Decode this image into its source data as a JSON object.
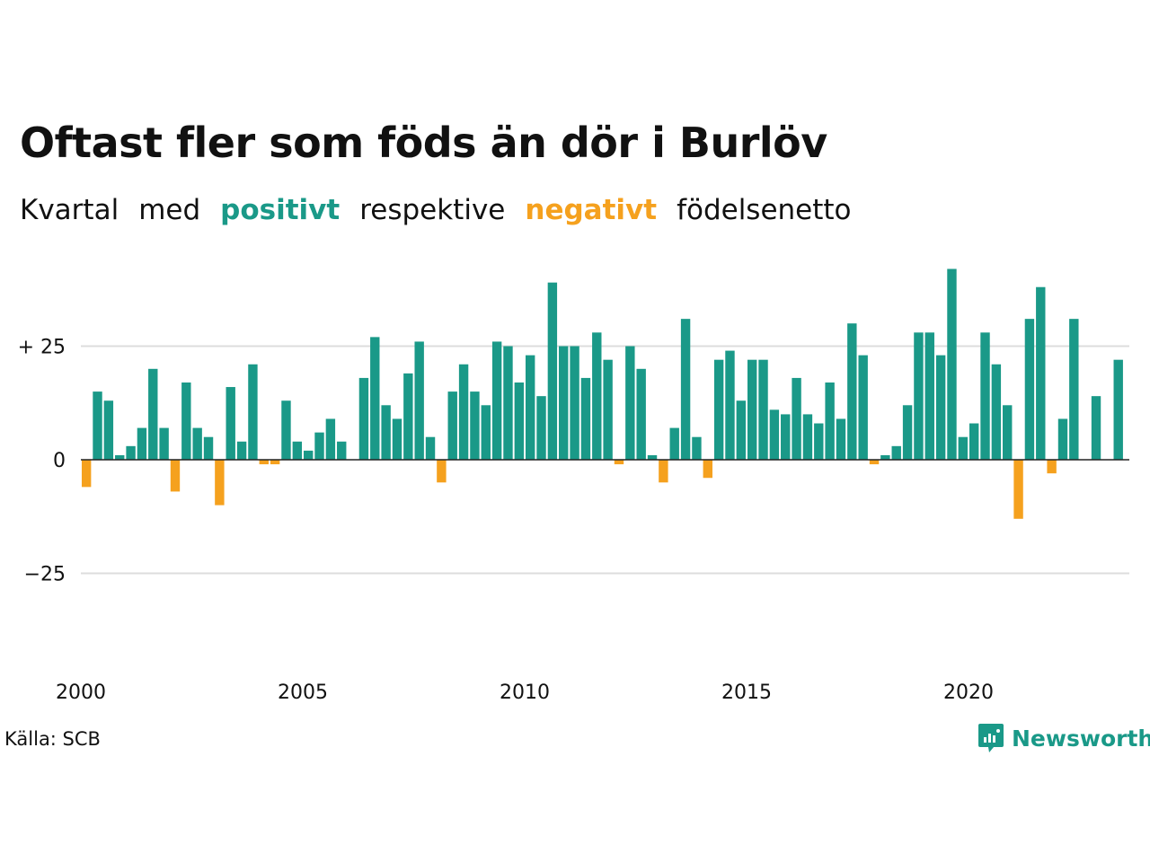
{
  "title": "Oftast fler som föds än dör i Burlöv",
  "subtitle": {
    "w1": "Kvartal",
    "w2": "med",
    "positive": "positivt",
    "w3": "respektive",
    "negative": "negativt",
    "w4": "födelsenetto"
  },
  "source": "Källa: SCB",
  "brand": "Newsworthy",
  "colors": {
    "positive": "#1a9988",
    "negative": "#f5a11e",
    "grid": "#dddddd",
    "baseline": "#222222"
  },
  "chart_data": {
    "type": "bar",
    "x_start": 2000,
    "periods_per_year": 4,
    "values": [
      -6,
      15,
      13,
      1,
      3,
      7,
      20,
      7,
      -7,
      17,
      7,
      5,
      -10,
      16,
      4,
      21,
      -1,
      -1,
      13,
      4,
      2,
      6,
      9,
      4,
      0,
      18,
      27,
      12,
      9,
      19,
      26,
      5,
      -5,
      15,
      21,
      15,
      12,
      26,
      25,
      17,
      23,
      14,
      39,
      25,
      25,
      18,
      28,
      22,
      -1,
      25,
      20,
      1,
      -5,
      7,
      31,
      5,
      -4,
      22,
      24,
      13,
      22,
      22,
      11,
      10,
      18,
      10,
      8,
      17,
      9,
      30,
      23,
      -1,
      1,
      3,
      12,
      28,
      28,
      23,
      42,
      5,
      8,
      28,
      21,
      12,
      -13,
      31,
      38,
      -3,
      9,
      31,
      0,
      14,
      0,
      22
    ],
    "yticks": [
      -25,
      0,
      25
    ],
    "ytick_labels": [
      "−25",
      "0",
      "+ 25"
    ],
    "xticks": [
      2000,
      2005,
      2010,
      2015,
      2020
    ],
    "xtick_labels": [
      "2000",
      "2005",
      "2010",
      "2015",
      "2020"
    ],
    "ylim": [
      -45,
      45
    ],
    "grid": true
  }
}
